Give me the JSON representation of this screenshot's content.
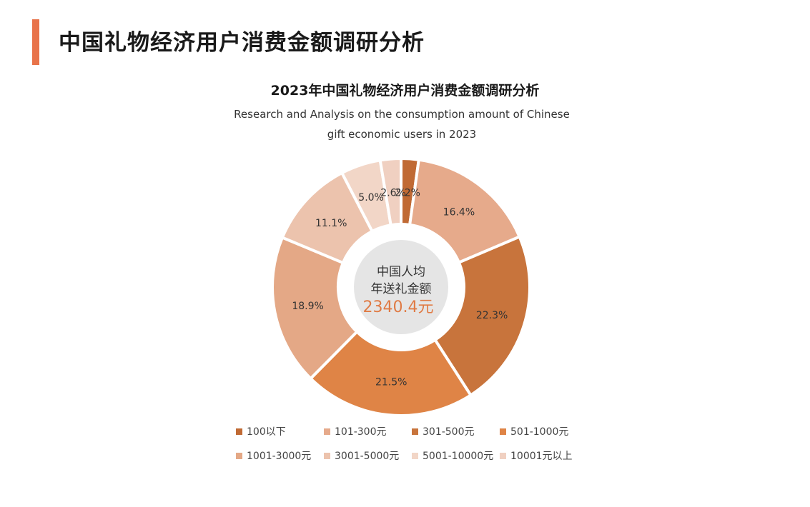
{
  "header": {
    "page_title": "中国礼物经济用户消费金额调研分析",
    "accent_color": "#e8734a"
  },
  "chart_data": {
    "type": "pie",
    "title": "2023年中国礼物经济用户消费金额调研分析",
    "subtitle": "Research and Analysis on the consumption amount of Chinese gift economic users in 2023",
    "subtitle_lines": [
      "Research and Analysis on the consumption amount of Chinese",
      "gift economic users in 2023"
    ],
    "donut": true,
    "center_label_lines": [
      "中国人均",
      "年送礼金额"
    ],
    "center_value": "2340.4元",
    "center_value_color": "#e07b45",
    "legend_position": "bottom",
    "slices": [
      {
        "label": "100以下",
        "value": 2.2,
        "value_label": "2.2%",
        "color": "#c06a34"
      },
      {
        "label": "101-300元",
        "value": 16.4,
        "value_label": "16.4%",
        "color": "#e6aa8b"
      },
      {
        "label": "301-500元",
        "value": 22.3,
        "value_label": "22.3%",
        "color": "#c8743c"
      },
      {
        "label": "501-1000元",
        "value": 21.5,
        "value_label": "21.5%",
        "color": "#df8446"
      },
      {
        "label": "1001-3000元",
        "value": 18.9,
        "value_label": "18.9%",
        "color": "#e4a886"
      },
      {
        "label": "3001-5000元",
        "value": 11.1,
        "value_label": "11.1%",
        "color": "#ecc3ad"
      },
      {
        "label": "5001-10000元",
        "value": 5.0,
        "value_label": "5.0%",
        "color": "#f2d6c7"
      },
      {
        "label": "10001元以上",
        "value": 2.6,
        "value_label": "2.6%",
        "color": "#f0d0c1"
      }
    ]
  }
}
